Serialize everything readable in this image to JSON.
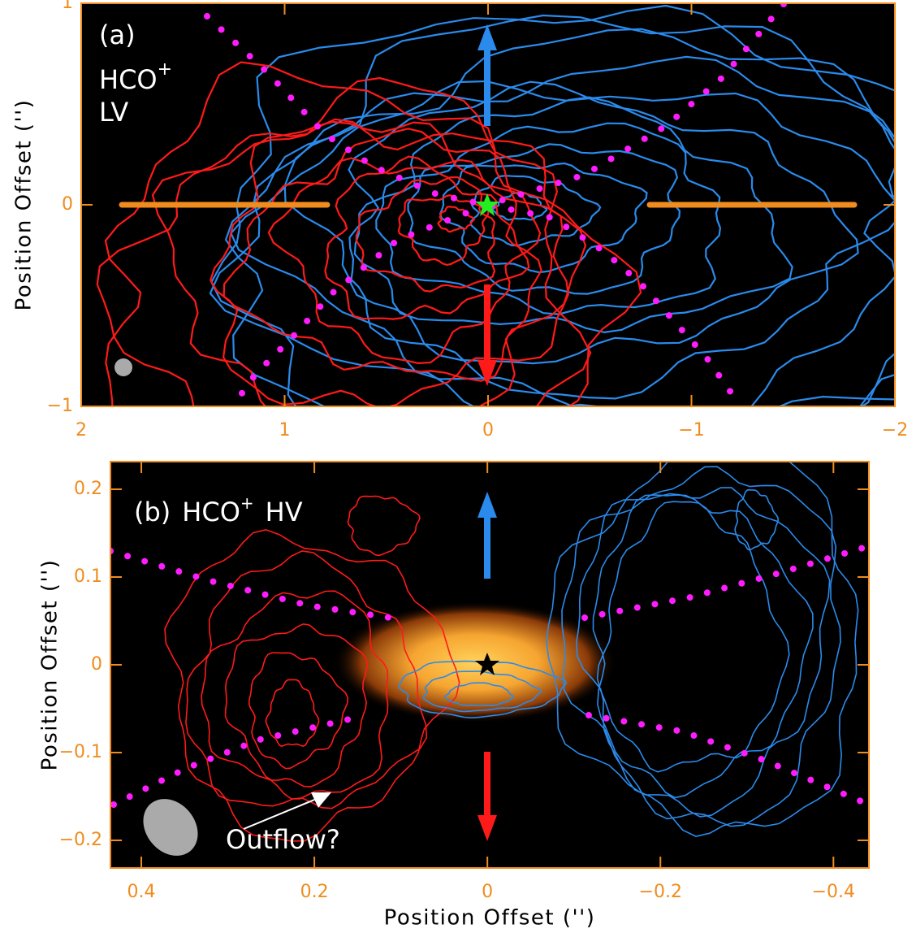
{
  "chart_data": [
    {
      "type": "contour",
      "panel_label": "(a)",
      "species": "HCO",
      "charge": "+",
      "velocity": "LV",
      "ylabel": "Position Offset ('')",
      "xlim": [
        2,
        -2
      ],
      "ylim": [
        -1,
        1
      ],
      "xticks": [
        2,
        1,
        0,
        {
          "value": -1,
          "label": "−1"
        },
        {
          "value": -2,
          "label": "−2"
        }
      ],
      "yticks": [
        {
          "value": -1,
          "label": "−1"
        },
        0,
        1
      ]
    },
    {
      "type": "contour",
      "panel_label": "(b)",
      "species": "HCO",
      "charge": "+",
      "velocity": "HV",
      "annotation": "Outflow?",
      "xlabel": "Position Offset ('')",
      "ylabel": "Position Offset ('')",
      "xlim": [
        0.4357,
        -0.441
      ],
      "ylim": [
        -0.2315,
        0.2315
      ],
      "xticks": [
        0.4,
        0.2,
        0,
        {
          "value": -0.2,
          "label": "−0.2"
        },
        {
          "value": -0.4,
          "label": "−0.4"
        }
      ],
      "yticks": [
        {
          "value": -0.2,
          "label": "−0.2"
        },
        {
          "value": -0.1,
          "label": "−0.1"
        },
        0,
        0.1,
        0.2
      ]
    }
  ]
}
